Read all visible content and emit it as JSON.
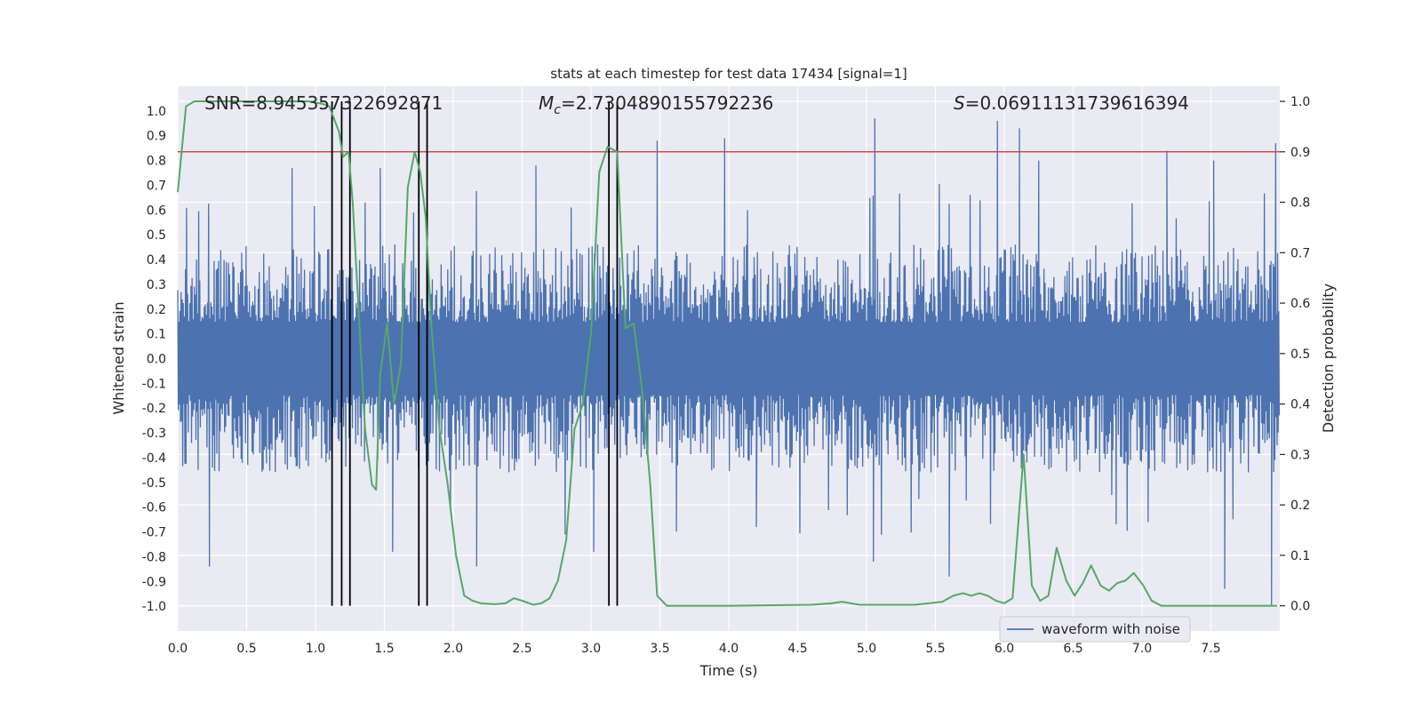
{
  "chart_data": {
    "type": "line",
    "title": "stats at each timestep for test data 17434 [signal=1]",
    "xlabel": "Time (s)",
    "ylabel": "Whitened strain",
    "ylabel_right": "Detection probability",
    "xlim": [
      0.0,
      8.0
    ],
    "ylim": [
      -1.1,
      1.1
    ],
    "ylim_right": [
      -0.05,
      1.03
    ],
    "x_ticks": [
      "0.0",
      "0.5",
      "1.0",
      "1.5",
      "2.0",
      "2.5",
      "3.0",
      "3.5",
      "4.0",
      "4.5",
      "5.0",
      "5.5",
      "6.0",
      "6.5",
      "7.0",
      "7.5"
    ],
    "y_ticks": [
      "1.0",
      "0.9",
      "0.8",
      "0.7",
      "0.6",
      "0.5",
      "0.4",
      "0.3",
      "0.2",
      "0.1",
      "0.0",
      "-0.1",
      "-0.2",
      "-0.3",
      "-0.4",
      "-0.5",
      "-0.6",
      "-0.7",
      "-0.8",
      "-0.9",
      "-1.0"
    ],
    "y_ticks_right": [
      "1.0",
      "0.9",
      "0.8",
      "0.7",
      "0.6",
      "0.5",
      "0.4",
      "0.3",
      "0.2",
      "0.1",
      "0.0"
    ],
    "annotations": {
      "snr": "SNR=8.945357322692871",
      "mc_symbol": "M",
      "mc_sub": "c",
      "mc_value": "=2.7304890155792236",
      "s_symbol": "S",
      "s_value": "=0.06911131739616394"
    },
    "legend": {
      "label": "waveform with noise",
      "placement": "lower-right"
    },
    "colors": {
      "waveform": "#4c72b0",
      "probability": "#55a868",
      "threshold": "#c44e52",
      "markers": "#000000",
      "axes_bg": "#eaeaf2",
      "grid": "#ffffff",
      "text": "#262626"
    },
    "waveform": {
      "name": "waveform with noise",
      "duration_s": 8.0,
      "n_samples": 2000,
      "typical_envelope": 0.42,
      "peaks": [
        {
          "t": 3.48,
          "v": 0.88
        },
        {
          "t": 3.97,
          "v": 0.89
        },
        {
          "t": 5.06,
          "v": 0.97
        },
        {
          "t": 5.95,
          "v": 0.96
        },
        {
          "t": 6.11,
          "v": 0.93
        },
        {
          "t": 7.97,
          "v": 0.87
        },
        {
          "t": 7.52,
          "v": 0.8
        },
        {
          "t": 7.18,
          "v": 0.84
        },
        {
          "t": 6.25,
          "v": 0.8
        },
        {
          "t": 0.83,
          "v": 0.77
        },
        {
          "t": 1.47,
          "v": 0.77
        },
        {
          "t": 2.6,
          "v": 0.78
        },
        {
          "t": 3.02,
          "v": -0.78
        },
        {
          "t": 0.23,
          "v": -0.84
        },
        {
          "t": 1.56,
          "v": -0.78
        },
        {
          "t": 2.17,
          "v": -0.84
        },
        {
          "t": 5.05,
          "v": -0.82
        },
        {
          "t": 5.6,
          "v": -0.88
        },
        {
          "t": 7.6,
          "v": -0.93
        },
        {
          "t": 7.94,
          "v": -1.0
        },
        {
          "t": 4.2,
          "v": -0.68
        }
      ]
    },
    "threshold": {
      "axis": "right",
      "value": 0.9
    },
    "markers_x": [
      1.12,
      1.19,
      1.25,
      1.75,
      1.81,
      3.13,
      3.19
    ],
    "detection_probability": {
      "x": [
        0.0,
        0.06,
        0.12,
        0.2,
        0.5,
        0.8,
        0.95,
        1.05,
        1.1,
        1.17,
        1.2,
        1.24,
        1.27,
        1.31,
        1.36,
        1.41,
        1.44,
        1.47,
        1.52,
        1.57,
        1.62,
        1.67,
        1.72,
        1.76,
        1.8,
        1.84,
        1.9,
        1.96,
        2.02,
        2.08,
        2.14,
        2.2,
        2.3,
        2.38,
        2.44,
        2.5,
        2.58,
        2.64,
        2.7,
        2.76,
        2.82,
        2.88,
        2.94,
        3.0,
        3.06,
        3.12,
        3.19,
        3.25,
        3.31,
        3.37,
        3.43,
        3.48,
        3.55,
        3.7,
        4.0,
        4.6,
        4.75,
        4.82,
        4.95,
        5.35,
        5.55,
        5.63,
        5.7,
        5.76,
        5.82,
        5.88,
        5.94,
        6.0,
        6.06,
        6.14,
        6.2,
        6.26,
        6.32,
        6.38,
        6.45,
        6.51,
        6.57,
        6.63,
        6.7,
        6.76,
        6.82,
        6.88,
        6.94,
        7.01,
        7.07,
        7.14,
        7.22,
        7.32,
        7.6,
        7.98
      ],
      "y": [
        0.82,
        0.99,
        1.0,
        1.0,
        1.0,
        1.0,
        1.0,
        0.995,
        0.99,
        0.94,
        0.89,
        0.9,
        0.8,
        0.6,
        0.35,
        0.24,
        0.23,
        0.46,
        0.56,
        0.4,
        0.48,
        0.83,
        0.9,
        0.86,
        0.77,
        0.56,
        0.35,
        0.24,
        0.1,
        0.02,
        0.01,
        0.005,
        0.003,
        0.005,
        0.015,
        0.01,
        0.002,
        0.005,
        0.015,
        0.05,
        0.13,
        0.35,
        0.4,
        0.54,
        0.86,
        0.91,
        0.9,
        0.55,
        0.56,
        0.43,
        0.24,
        0.02,
        0.0,
        0.0,
        0.0,
        0.002,
        0.005,
        0.008,
        0.002,
        0.002,
        0.008,
        0.02,
        0.025,
        0.02,
        0.025,
        0.02,
        0.01,
        0.005,
        0.015,
        0.3,
        0.04,
        0.01,
        0.02,
        0.115,
        0.05,
        0.02,
        0.045,
        0.08,
        0.04,
        0.03,
        0.045,
        0.05,
        0.065,
        0.04,
        0.01,
        0.0,
        0.0,
        0.0,
        0.0,
        0.0
      ]
    }
  }
}
